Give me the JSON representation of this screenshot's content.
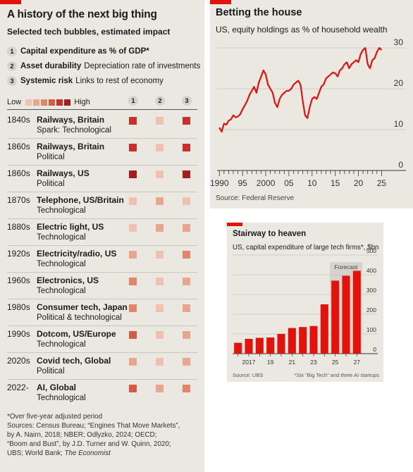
{
  "left": {
    "title": "A history of the next big thing",
    "subtitle": "Selected tech bubbles, estimated impact",
    "legend": [
      {
        "num": "1",
        "key": "Capital expenditure as % of GDP*",
        "desc": ""
      },
      {
        "num": "2",
        "key": "Asset durability",
        "desc": "Depreciation rate of investments"
      },
      {
        "num": "3",
        "key": "Systemic risk",
        "desc": "Links to rest of economy"
      }
    ],
    "scale_low": "Low",
    "scale_high": "High",
    "scale_colors": [
      "#efc1b1",
      "#e8a58f",
      "#e0856c",
      "#d65b46",
      "#c8302c",
      "#a81c1e"
    ],
    "col_heads": [
      "1",
      "2",
      "3"
    ],
    "rows": [
      {
        "decade": "1840s",
        "name": "Railways, Britain",
        "sub": "Spark: Technological",
        "levels": [
          5,
          1,
          5
        ]
      },
      {
        "decade": "1860s",
        "name": "Railways, Britain",
        "sub": "Political",
        "levels": [
          5,
          1,
          5
        ]
      },
      {
        "decade": "1860s",
        "name": "Railways, US",
        "sub": "Political",
        "levels": [
          6,
          1,
          6
        ]
      },
      {
        "decade": "1870s",
        "name": "Telephone, US/Britain",
        "sub": "Technological",
        "levels": [
          1,
          2,
          1
        ]
      },
      {
        "decade": "1880s",
        "name": "Electric light, US",
        "sub": "Technological",
        "levels": [
          1,
          2,
          2
        ]
      },
      {
        "decade": "1920s",
        "name": "Electricity/radio, US",
        "sub": "Technological",
        "levels": [
          2,
          1,
          3
        ]
      },
      {
        "decade": "1960s",
        "name": "Electronics, US",
        "sub": "Technological",
        "levels": [
          3,
          1,
          2
        ]
      },
      {
        "decade": "1980s",
        "name": "Consumer tech, Japan",
        "sub": "Political & technological",
        "levels": [
          3,
          1,
          2
        ]
      },
      {
        "decade": "1990s",
        "name": "Dotcom, US/Europe",
        "sub": "Technological",
        "levels": [
          4,
          1,
          2
        ]
      },
      {
        "decade": "2020s",
        "name": "Covid tech, Global",
        "sub": "Political",
        "levels": [
          2,
          1,
          2
        ]
      },
      {
        "decade": "2022-",
        "name": "AI, Global",
        "sub": "Technological",
        "levels": [
          4,
          2,
          3
        ]
      }
    ],
    "notes": [
      "*Over five-year adjusted period",
      "Sources: Census Bureau; “Engines That Move Markets”,",
      "by A. Nairn, 2018; NBER; Odlyzko, 2024; OECD;",
      "“Boom and Bust”, by J.D. Turner and W. Quinn, 2020;",
      "UBS; World Bank; The Economist"
    ]
  },
  "chart_data": [
    {
      "type": "line",
      "title": "Betting the house",
      "subtitle": "US, equity holdings as % of household wealth",
      "source": "Source: Federal Reserve",
      "ylim": [
        0,
        30
      ],
      "yticks": [
        "0",
        "10",
        "20",
        "30"
      ],
      "xticks": [
        "1990",
        "95",
        "2000",
        "05",
        "10",
        "15",
        "20",
        "25"
      ],
      "xlim": [
        1989.5,
        2026
      ],
      "grid": true,
      "color": "#e3120b",
      "x": [
        1990,
        1990.5,
        1991,
        1991.5,
        1992,
        1992.5,
        1993,
        1993.5,
        1994,
        1994.5,
        1995,
        1995.5,
        1996,
        1996.5,
        1997,
        1997.5,
        1998,
        1998.5,
        1999,
        1999.5,
        2000,
        2000.5,
        2001,
        2001.5,
        2002,
        2002.5,
        2003,
        2003.5,
        2004,
        2004.5,
        2005,
        2005.5,
        2006,
        2006.5,
        2007,
        2007.5,
        2008,
        2008.5,
        2009,
        2009.5,
        2010,
        2010.5,
        2011,
        2011.5,
        2012,
        2012.5,
        2013,
        2013.5,
        2014,
        2014.5,
        2015,
        2015.5,
        2016,
        2016.5,
        2017,
        2017.5,
        2018,
        2018.5,
        2019,
        2019.5,
        2020,
        2020.5,
        2021,
        2021.5,
        2022,
        2022.5,
        2023,
        2023.5,
        2024,
        2024.5,
        2025
      ],
      "y": [
        10.5,
        9.5,
        11.5,
        11.2,
        12.2,
        12.5,
        13.5,
        13.0,
        13.2,
        13.8,
        15.0,
        16.0,
        17.0,
        18.5,
        19.5,
        20.5,
        19.0,
        21.5,
        23.0,
        24.5,
        23.5,
        21.0,
        20.0,
        19.0,
        16.5,
        15.5,
        17.5,
        18.5,
        19.0,
        19.5,
        19.5,
        20.0,
        21.0,
        21.5,
        22.0,
        21.0,
        17.0,
        13.5,
        12.8,
        15.5,
        17.5,
        18.0,
        17.5,
        19.0,
        20.5,
        21.0,
        22.5,
        23.0,
        23.5,
        24.0,
        23.8,
        23.0,
        24.5,
        25.0,
        26.0,
        26.5,
        25.0,
        26.0,
        26.5,
        27.0,
        26.5,
        28.5,
        29.5,
        30.0,
        26.0,
        25.0,
        27.0,
        27.5,
        29.0,
        30.0,
        29.5
      ]
    },
    {
      "type": "bar",
      "title": "Stairway to heaven",
      "subtitle": "US, capital expenditure of large tech firms*, $bn",
      "source": "Source: UBS",
      "footnote": "*Six “Big Tech” and three AI startups",
      "forecast_label": "Forecast",
      "forecast_from": 2025,
      "ylim": [
        0,
        500
      ],
      "yticks": [
        "0",
        "100",
        "200",
        "300",
        "400",
        "500"
      ],
      "xticks": [
        "2017",
        "19",
        "21",
        "23",
        "25",
        "27"
      ],
      "color": "#e3120b",
      "categories": [
        "2016",
        "2017",
        "2018",
        "2019",
        "2020",
        "2021",
        "2022",
        "2023",
        "2024",
        "2025",
        "2026",
        "2027"
      ],
      "values": [
        55,
        75,
        80,
        82,
        100,
        130,
        135,
        140,
        250,
        370,
        395,
        420
      ]
    }
  ]
}
